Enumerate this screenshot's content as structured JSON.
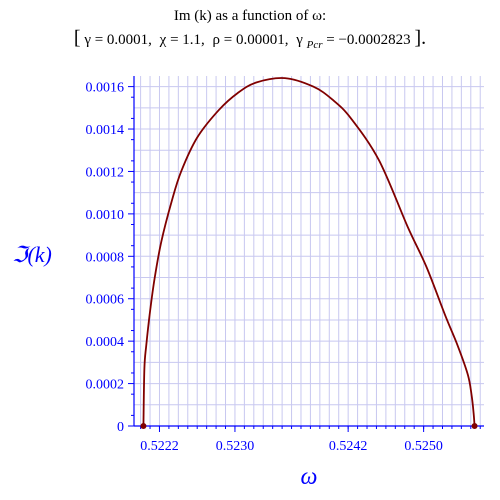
{
  "chart_data": {
    "type": "line",
    "title": "Im (k) as a function of ω:",
    "subtitle": {
      "open_bracket": "[",
      "gamma": "γ = 0.0001,",
      "chi": "χ = 1.1,",
      "rho": "ρ = 0.00001,",
      "gamma_pcr_symbol": "γ",
      "gamma_pcr_subscript": "Pcr",
      "gamma_pcr_value": " = −0.0002823",
      "close_bracket": "]."
    },
    "xlabel": "ω",
    "ylabel": "ℑ(k)",
    "xlim": [
      0.52193,
      0.52564
    ],
    "ylim": [
      0,
      0.00165
    ],
    "xticks": [
      {
        "value": 0.5222,
        "label": "0.5222"
      },
      {
        "value": 0.523,
        "label": "0.5230"
      },
      {
        "value": 0.5242,
        "label": "0.5242"
      },
      {
        "value": 0.525,
        "label": "0.5250"
      }
    ],
    "yticks": [
      {
        "value": 0,
        "label": "0"
      },
      {
        "value": 0.0002,
        "label": "0.0002"
      },
      {
        "value": 0.0004,
        "label": "0.0004"
      },
      {
        "value": 0.0006,
        "label": "0.0006"
      },
      {
        "value": 0.0008,
        "label": "0.0008"
      },
      {
        "value": 0.001,
        "label": "0.0010"
      },
      {
        "value": 0.0012,
        "label": "0.0012"
      },
      {
        "value": 0.0014,
        "label": "0.0014"
      },
      {
        "value": 0.0016,
        "label": "0.0016"
      }
    ],
    "grid": true,
    "series": [
      {
        "color": "#800000",
        "x": [
          0.52203,
          0.52204,
          0.52206,
          0.5221,
          0.52215,
          0.52222,
          0.52233,
          0.52243,
          0.5226,
          0.52283,
          0.52303,
          0.52323,
          0.52353,
          0.52383,
          0.52403,
          0.52423,
          0.52453,
          0.52483,
          0.52503,
          0.52523,
          0.52536,
          0.52547,
          0.52551,
          0.52553,
          0.52554
        ],
        "y": [
          0,
          0.00027,
          0.00038,
          0.00054,
          0.0007,
          0.00087,
          0.00106,
          0.0012,
          0.00136,
          0.00149,
          0.00157,
          0.00162,
          0.00164,
          0.0016,
          0.00154,
          0.00145,
          0.00125,
          0.00094,
          0.00075,
          0.00052,
          0.00038,
          0.00024,
          0.00014,
          6e-05,
          0
        ],
        "endpoint_color": "#800000"
      }
    ],
    "colors": {
      "axis": "#0000ff",
      "grid": "#c8c8f0",
      "curve": "#800000",
      "label": "#0000ff"
    }
  }
}
